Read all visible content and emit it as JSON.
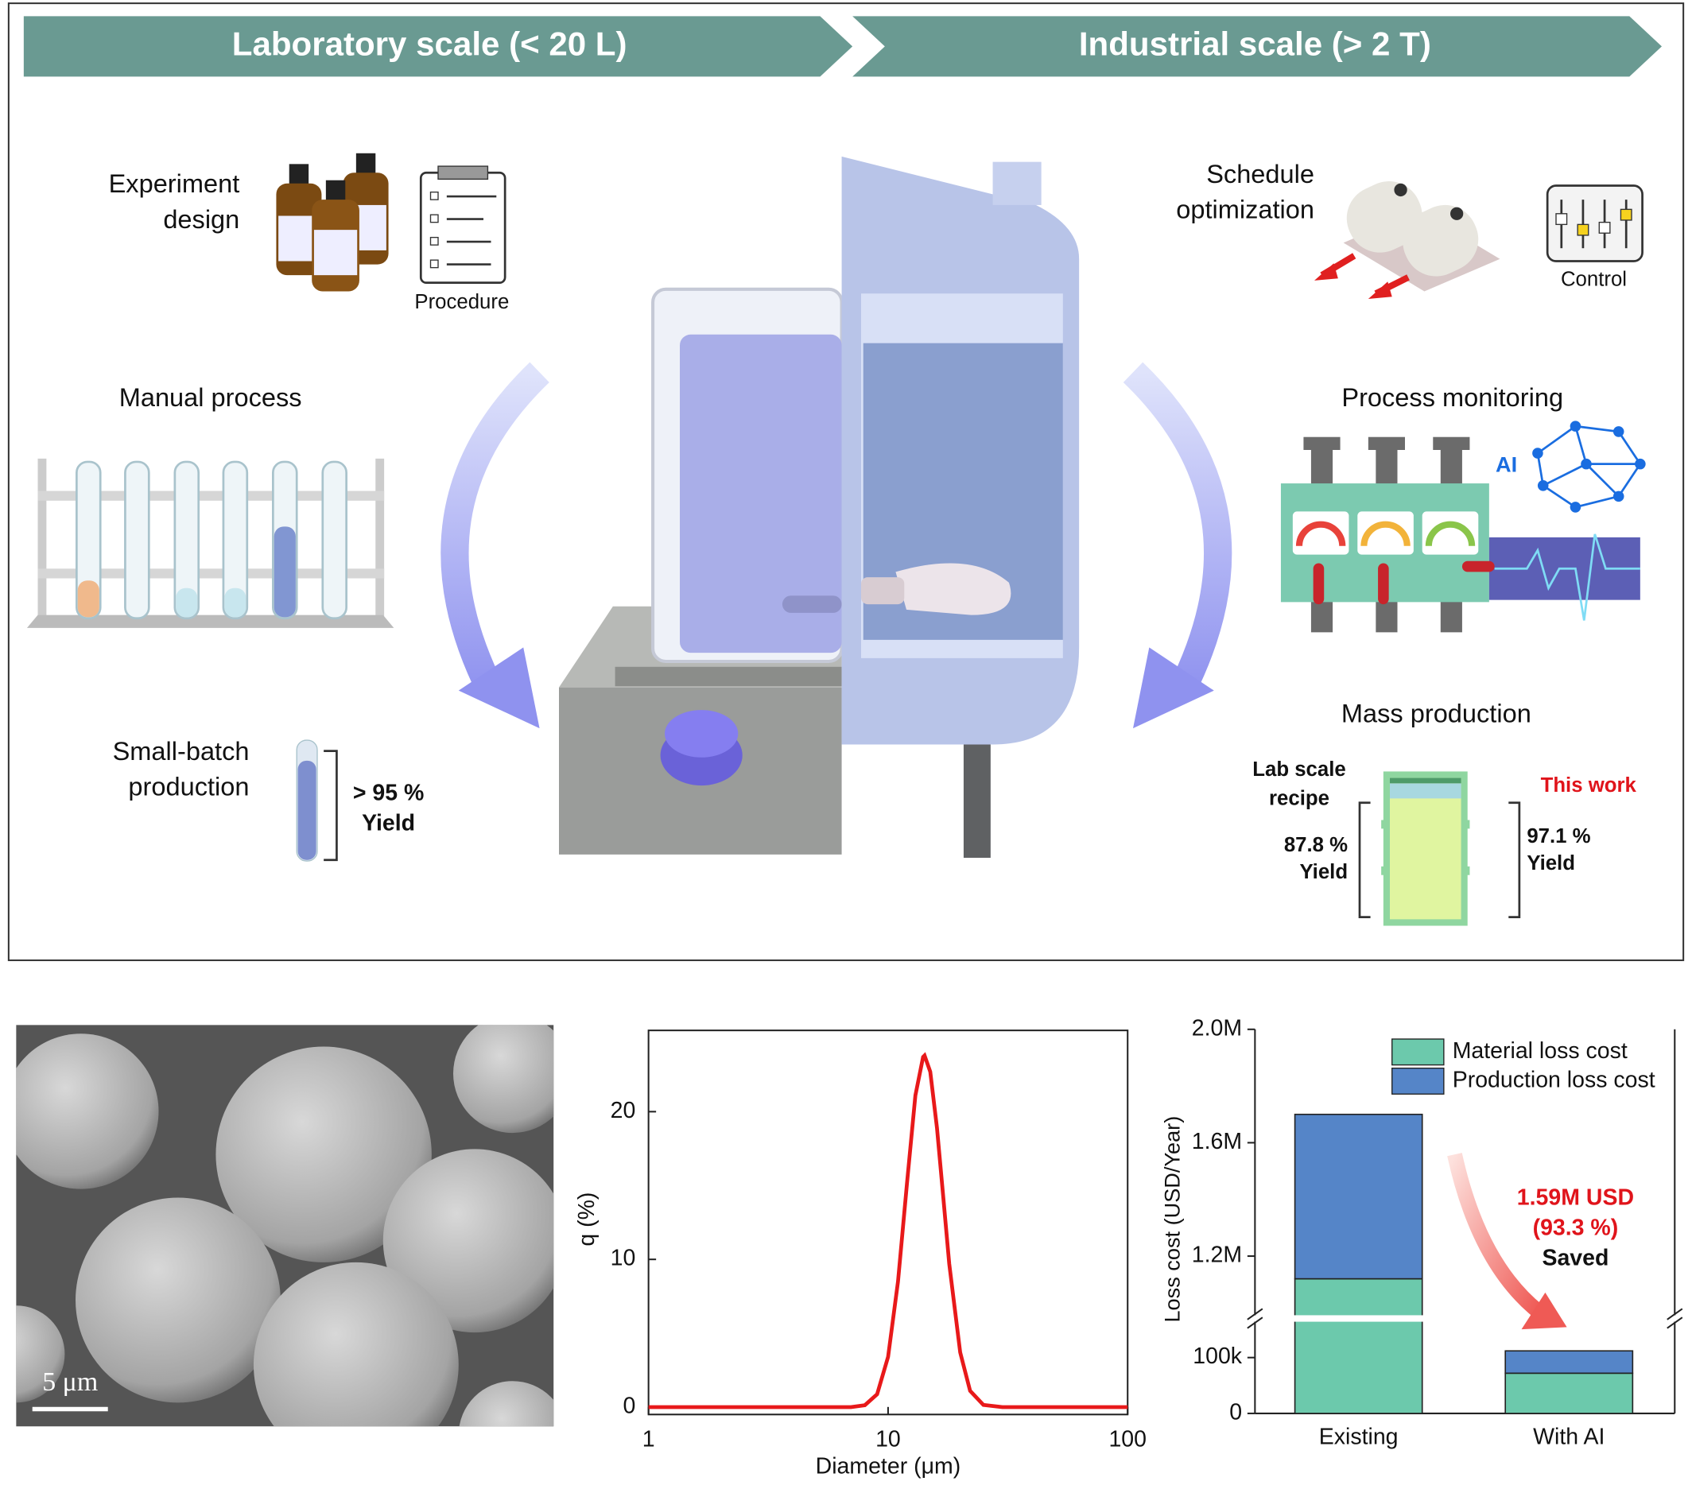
{
  "diagram": {
    "banner_left": "Laboratory scale (< 20 L)",
    "banner_right": "Industrial scale (> 2 T)",
    "experiment_design": [
      "Experiment",
      "design"
    ],
    "procedure": "Procedure",
    "manual_process": "Manual process",
    "small_batch": [
      "Small-batch",
      "production"
    ],
    "small_batch_yield": [
      "> 95 %",
      "Yield"
    ],
    "schedule_optimization": [
      "Schedule",
      "optimization"
    ],
    "control": "Control",
    "process_monitoring": "Process monitoring",
    "ai": "AI",
    "mass_production": "Mass production",
    "lab_recipe": [
      "Lab scale",
      "recipe"
    ],
    "lab_yield": [
      "87.8 %",
      "Yield"
    ],
    "this_work": "This work",
    "work_yield": [
      "97.1 %",
      "Yield"
    ],
    "scale_bar": "5 μm"
  },
  "chart_data": [
    {
      "type": "line",
      "xlabel": "Diameter (μm)",
      "ylabel": "q (%)",
      "log_x": true,
      "x": [
        1,
        5,
        7,
        8,
        9,
        10,
        11,
        12,
        13,
        14,
        14.2,
        15,
        16,
        17,
        18,
        20,
        22,
        25,
        30,
        100
      ],
      "values": [
        0,
        0,
        0,
        0.13,
        0.87,
        3.4,
        8.5,
        15.2,
        21.1,
        23.7,
        23.8,
        22.7,
        18.9,
        14.2,
        9.7,
        3.7,
        1.1,
        0.15,
        0,
        0
      ],
      "color": "#e8191a",
      "xlim": [
        1,
        100
      ],
      "xticks": [
        1,
        10,
        100
      ],
      "ylim": [
        -0.5,
        25.5
      ],
      "yticks": [
        0,
        10,
        20
      ]
    },
    {
      "type": "bar",
      "stacked": true,
      "ylabel": "Loss cost (USD/Year)",
      "categories": [
        "Existing",
        "With AI"
      ],
      "series": [
        {
          "name": "Material loss cost",
          "color": "#6cc9ac",
          "values": [
            1120000,
            72000
          ]
        },
        {
          "name": "Production loss cost",
          "color": "#5585c8",
          "values": [
            580000,
            40000
          ]
        }
      ],
      "ylim": [
        0,
        2000000
      ],
      "ybreak": [
        170000,
        980000
      ],
      "yticks": [
        0,
        {
          "value": 100000,
          "label": "100k"
        },
        {
          "value": 1200000,
          "label": "1.2M"
        },
        {
          "value": 1600000,
          "label": "1.6M"
        },
        {
          "value": 2000000,
          "label": "2.0M"
        }
      ],
      "annotation": [
        "1.59M USD",
        "(93.3 %)",
        "Saved"
      ]
    }
  ]
}
